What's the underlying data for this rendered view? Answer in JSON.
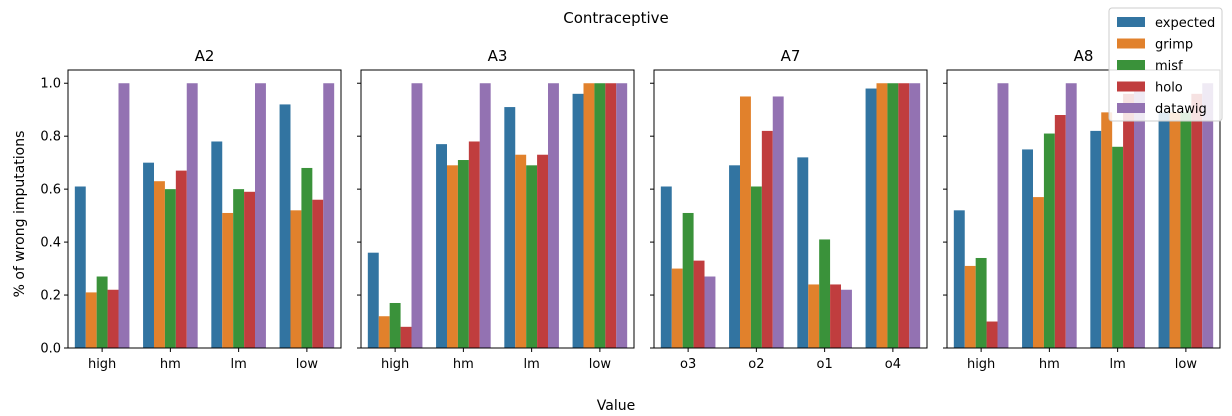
{
  "figure": {
    "title": "Contraceptive",
    "xlabel": "Value",
    "ylabel": "% of wrong imputations"
  },
  "legend": {
    "placement": "top-right",
    "entries": [
      {
        "name": "expected",
        "color": "#3274a1"
      },
      {
        "name": "grimp",
        "color": "#e1812c"
      },
      {
        "name": "misf",
        "color": "#3a923a"
      },
      {
        "name": "holo",
        "color": "#c03d3e"
      },
      {
        "name": "datawig",
        "color": "#9372b2"
      }
    ]
  },
  "yticks": [
    "0.0",
    "0.2",
    "0.4",
    "0.6",
    "0.8",
    "1.0"
  ],
  "chart_data": [
    {
      "type": "bar",
      "title": "A2",
      "categories": [
        "high",
        "hm",
        "lm",
        "low"
      ],
      "ylim": [
        0,
        1.05
      ],
      "series": [
        {
          "name": "expected",
          "values": [
            0.61,
            0.7,
            0.78,
            0.92
          ]
        },
        {
          "name": "grimp",
          "values": [
            0.21,
            0.63,
            0.51,
            0.52
          ]
        },
        {
          "name": "misf",
          "values": [
            0.27,
            0.6,
            0.6,
            0.68
          ]
        },
        {
          "name": "holo",
          "values": [
            0.22,
            0.67,
            0.59,
            0.56
          ]
        },
        {
          "name": "datawig",
          "values": [
            1.0,
            1.0,
            1.0,
            1.0
          ]
        }
      ]
    },
    {
      "type": "bar",
      "title": "A3",
      "categories": [
        "high",
        "hm",
        "lm",
        "low"
      ],
      "ylim": [
        0,
        1.05
      ],
      "series": [
        {
          "name": "expected",
          "values": [
            0.36,
            0.77,
            0.91,
            0.96
          ]
        },
        {
          "name": "grimp",
          "values": [
            0.12,
            0.69,
            0.73,
            1.0
          ]
        },
        {
          "name": "misf",
          "values": [
            0.17,
            0.71,
            0.69,
            1.0
          ]
        },
        {
          "name": "holo",
          "values": [
            0.08,
            0.78,
            0.73,
            1.0
          ]
        },
        {
          "name": "datawig",
          "values": [
            1.0,
            1.0,
            1.0,
            1.0
          ]
        }
      ]
    },
    {
      "type": "bar",
      "title": "A7",
      "categories": [
        "o3",
        "o2",
        "o1",
        "o4"
      ],
      "ylim": [
        0,
        1.05
      ],
      "series": [
        {
          "name": "expected",
          "values": [
            0.61,
            0.69,
            0.72,
            0.98
          ]
        },
        {
          "name": "grimp",
          "values": [
            0.3,
            0.95,
            0.24,
            1.0
          ]
        },
        {
          "name": "misf",
          "values": [
            0.51,
            0.61,
            0.41,
            1.0
          ]
        },
        {
          "name": "holo",
          "values": [
            0.33,
            0.82,
            0.24,
            1.0
          ]
        },
        {
          "name": "datawig",
          "values": [
            0.27,
            0.95,
            0.22,
            1.0
          ]
        }
      ]
    },
    {
      "type": "bar",
      "title": "A8",
      "categories": [
        "high",
        "hm",
        "lm",
        "low"
      ],
      "ylim": [
        0,
        1.05
      ],
      "series": [
        {
          "name": "expected",
          "values": [
            0.52,
            0.75,
            0.82,
            0.89
          ]
        },
        {
          "name": "grimp",
          "values": [
            0.31,
            0.57,
            0.89,
            0.89
          ]
        },
        {
          "name": "misf",
          "values": [
            0.34,
            0.81,
            0.76,
            0.89
          ]
        },
        {
          "name": "holo",
          "values": [
            0.1,
            0.88,
            0.96,
            0.96
          ]
        },
        {
          "name": "datawig",
          "values": [
            1.0,
            1.0,
            1.0,
            1.0
          ]
        }
      ]
    }
  ]
}
